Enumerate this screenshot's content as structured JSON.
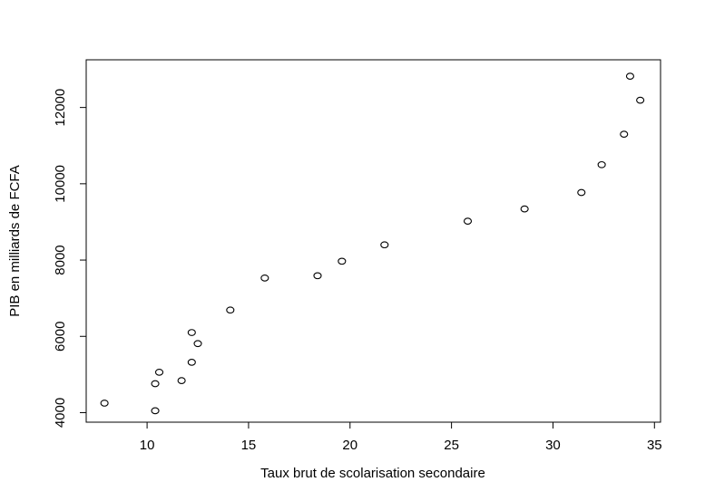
{
  "chart_data": {
    "type": "scatter",
    "title": "",
    "xlabel": "Taux brut de scolarisation secondaire",
    "ylabel": "PIB en milliards de FCFA",
    "xlim": [
      7,
      35.3
    ],
    "ylim": [
      3750,
      13250
    ],
    "x_ticks": [
      10,
      15,
      20,
      25,
      30,
      35
    ],
    "y_ticks": [
      4000,
      6000,
      8000,
      10000,
      12000
    ],
    "grid": false,
    "legend": "none",
    "marker": "open-circle",
    "point_color": "#000000",
    "points": [
      {
        "x": 7.9,
        "y": 4250
      },
      {
        "x": 10.4,
        "y": 4050
      },
      {
        "x": 10.4,
        "y": 4760
      },
      {
        "x": 10.6,
        "y": 5060
      },
      {
        "x": 11.7,
        "y": 4840
      },
      {
        "x": 12.2,
        "y": 5320
      },
      {
        "x": 12.2,
        "y": 6100
      },
      {
        "x": 12.5,
        "y": 5810
      },
      {
        "x": 14.1,
        "y": 6690
      },
      {
        "x": 15.8,
        "y": 7530
      },
      {
        "x": 18.4,
        "y": 7590
      },
      {
        "x": 19.6,
        "y": 7970
      },
      {
        "x": 21.7,
        "y": 8400
      },
      {
        "x": 25.8,
        "y": 9020
      },
      {
        "x": 28.6,
        "y": 9340
      },
      {
        "x": 31.4,
        "y": 9770
      },
      {
        "x": 32.4,
        "y": 10500
      },
      {
        "x": 33.5,
        "y": 11300
      },
      {
        "x": 33.8,
        "y": 12820
      },
      {
        "x": 34.3,
        "y": 12190
      }
    ]
  }
}
